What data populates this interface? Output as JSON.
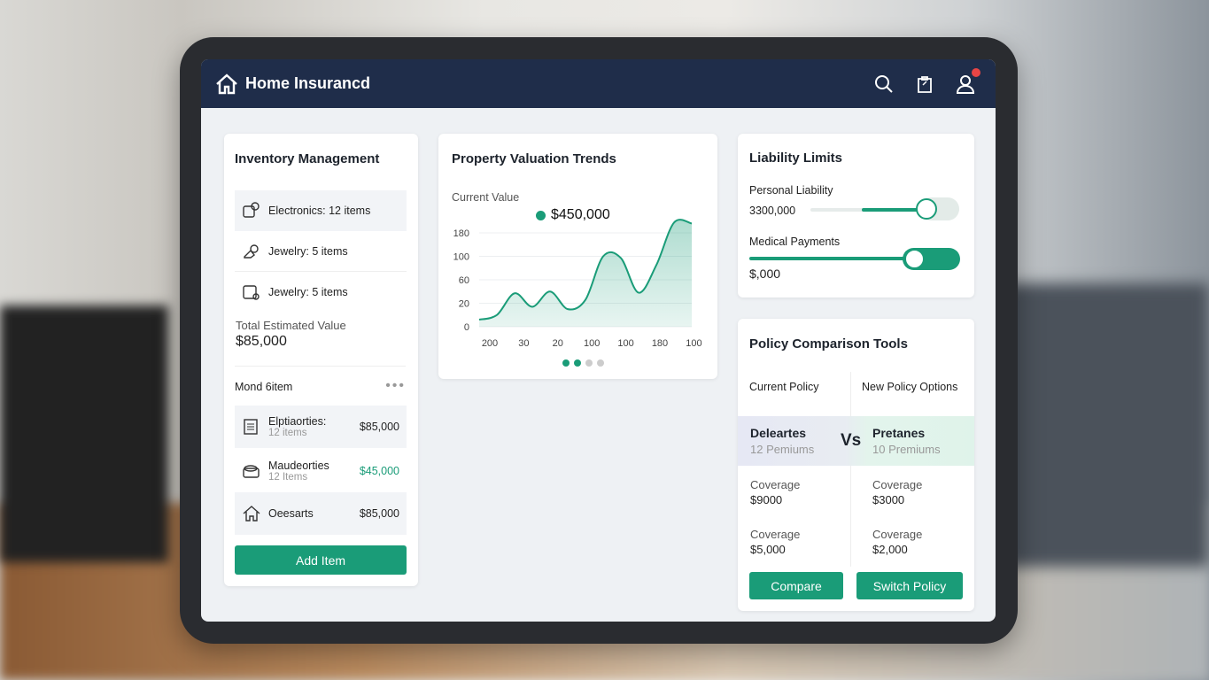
{
  "header": {
    "title": "Home Insurancd",
    "icons": [
      "home-icon",
      "search-icon",
      "clipboard-icon",
      "user-icon"
    ]
  },
  "inventory": {
    "title": "Inventory Management",
    "categories": [
      {
        "label": "Electronics: 12 items",
        "icon": "devices-icon"
      },
      {
        "label": "Jewelry: 5 items",
        "icon": "ring-icon"
      },
      {
        "label": "Jewelry: 5 items",
        "icon": "card-icon"
      }
    ],
    "total_label": "Total Estimated Value",
    "total_value": "$85,000",
    "list_title": "Mond 6item",
    "items": [
      {
        "name": "Elptiaorties:",
        "sub": "12 items",
        "value": "$85,000",
        "icon": "document-icon"
      },
      {
        "name": "Maudeorties",
        "sub": "12 Items",
        "value": "$45,000",
        "icon": "box-icon",
        "highlight": true
      },
      {
        "name": "Oeesarts",
        "sub": "",
        "value": "$85,000",
        "icon": "house-icon"
      }
    ],
    "add_label": "Add Item"
  },
  "valuation": {
    "title": "Property Valuation Trends",
    "current_label": "Current Value",
    "current_value": "$450,000"
  },
  "chart_data": {
    "type": "area",
    "ytick_labels": [
      "0",
      "20",
      "60",
      "100",
      "180"
    ],
    "xtick_labels": [
      "200",
      "30",
      "20",
      "100",
      "100",
      "180",
      "100"
    ],
    "values": [
      6,
      10,
      37,
      17,
      40,
      15,
      26,
      100,
      97,
      38,
      85,
      215,
      212
    ],
    "color": "#1a9c78",
    "grid": true,
    "pager": {
      "pages": 4,
      "active": 2
    }
  },
  "liability": {
    "title": "Liability Limits",
    "personal": {
      "label": "Personal Liability",
      "value": "3300,000",
      "level": 0.78
    },
    "medical": {
      "label": "Medical Payments",
      "value": "$,000",
      "level": 0.78
    }
  },
  "policy": {
    "title": "Policy Comparison Tools",
    "current_header": "Current Policy",
    "new_header": "New Policy Options",
    "current_name": "Deleartes",
    "current_sub": "12 Pemiums",
    "vs": "Vs",
    "new_name": "Pretanes",
    "new_sub": "10 Premiums",
    "rows": [
      {
        "label": "Coverage",
        "cur": "$9000",
        "new": "$3000"
      },
      {
        "label": "Coverage",
        "cur": "$5,000",
        "new": "$2,000"
      }
    ],
    "compare_label": "Compare",
    "switch_label": "Switch Policy"
  },
  "colors": {
    "accent": "#1a9c78",
    "header": "#1f2d4a",
    "badge": "#e84545"
  }
}
